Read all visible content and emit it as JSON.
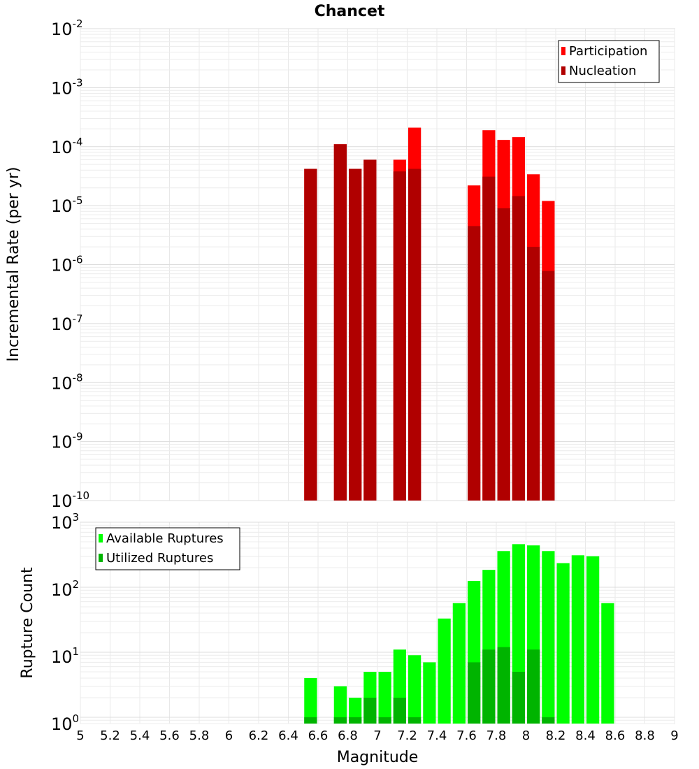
{
  "chart_data": {
    "type": "bar",
    "title": "Chancet",
    "xlabel": "Magnitude",
    "xlim": [
      5,
      9
    ],
    "x_ticks": [
      "5",
      "5.2",
      "5.4",
      "5.6",
      "5.8",
      "6",
      "6.2",
      "6.4",
      "6.6",
      "6.8",
      "7",
      "7.2",
      "7.4",
      "7.6",
      "7.8",
      "8",
      "8.2",
      "8.4",
      "8.6",
      "8.8",
      "9"
    ],
    "bin_width": 0.1,
    "panels": [
      {
        "ylabel": "Incremental Rate (per yr)",
        "yscale": "log",
        "ylim": [
          1e-10,
          0.01
        ],
        "y_ticks": [
          {
            "base": "10",
            "exp": "-10"
          },
          {
            "base": "10",
            "exp": "-9"
          },
          {
            "base": "10",
            "exp": "-8"
          },
          {
            "base": "10",
            "exp": "-7"
          },
          {
            "base": "10",
            "exp": "-6"
          },
          {
            "base": "10",
            "exp": "-5"
          },
          {
            "base": "10",
            "exp": "-4"
          },
          {
            "base": "10",
            "exp": "-3"
          },
          {
            "base": "10",
            "exp": "-2"
          }
        ],
        "legend_position": "top-right",
        "series": [
          {
            "name": "Participation",
            "color": "#ff0000",
            "points": [
              [
                6.55,
                4.2e-05
              ],
              [
                6.75,
                0.00011
              ],
              [
                6.85,
                4.2e-05
              ],
              [
                6.95,
                6e-05
              ],
              [
                7.15,
                6e-05
              ],
              [
                7.25,
                0.00021
              ],
              [
                7.65,
                2.2e-05
              ],
              [
                7.75,
                0.00019
              ],
              [
                7.85,
                0.00013
              ],
              [
                7.95,
                0.000145
              ],
              [
                8.05,
                3.4e-05
              ],
              [
                8.15,
                1.2e-05
              ]
            ]
          },
          {
            "name": "Nucleation",
            "color": "#b00000",
            "points": [
              [
                6.55,
                4.2e-05
              ],
              [
                6.75,
                0.00011
              ],
              [
                6.85,
                4.2e-05
              ],
              [
                6.95,
                6e-05
              ],
              [
                7.15,
                3.8e-05
              ],
              [
                7.25,
                4.2e-05
              ],
              [
                7.65,
                4.5e-06
              ],
              [
                7.75,
                3.1e-05
              ],
              [
                7.85,
                9e-06
              ],
              [
                7.95,
                1.45e-05
              ],
              [
                8.05,
                2e-06
              ],
              [
                8.15,
                7.8e-07
              ]
            ]
          }
        ]
      },
      {
        "ylabel": "Rupture Count",
        "yscale": "log",
        "ylim": [
          0.8,
          1000
        ],
        "y_ticks": [
          {
            "base": "10",
            "exp": "0"
          },
          {
            "base": "10",
            "exp": "1"
          },
          {
            "base": "10",
            "exp": "2"
          },
          {
            "base": "10",
            "exp": "3"
          }
        ],
        "legend_position": "top-left",
        "series": [
          {
            "name": "Available Ruptures",
            "color": "#00ff00",
            "points": [
              [
                6.55,
                4
              ],
              [
                6.75,
                3
              ],
              [
                6.85,
                2
              ],
              [
                6.95,
                5
              ],
              [
                7.05,
                5
              ],
              [
                7.15,
                11
              ],
              [
                7.25,
                9
              ],
              [
                7.35,
                7
              ],
              [
                7.45,
                33
              ],
              [
                7.55,
                57
              ],
              [
                7.65,
                125
              ],
              [
                7.75,
                185
              ],
              [
                7.85,
                360
              ],
              [
                7.95,
                460
              ],
              [
                8.05,
                440
              ],
              [
                8.15,
                360
              ],
              [
                8.25,
                235
              ],
              [
                8.35,
                310
              ],
              [
                8.45,
                300
              ],
              [
                8.55,
                57
              ]
            ]
          },
          {
            "name": "Utilized Ruptures",
            "color": "#00b400",
            "points": [
              [
                6.55,
                1
              ],
              [
                6.75,
                1
              ],
              [
                6.85,
                1
              ],
              [
                6.95,
                2
              ],
              [
                7.05,
                1
              ],
              [
                7.15,
                2
              ],
              [
                7.25,
                1
              ],
              [
                7.65,
                7
              ],
              [
                7.75,
                11
              ],
              [
                7.85,
                12
              ],
              [
                7.95,
                5
              ],
              [
                8.05,
                11
              ],
              [
                8.15,
                1
              ]
            ]
          }
        ]
      }
    ]
  }
}
